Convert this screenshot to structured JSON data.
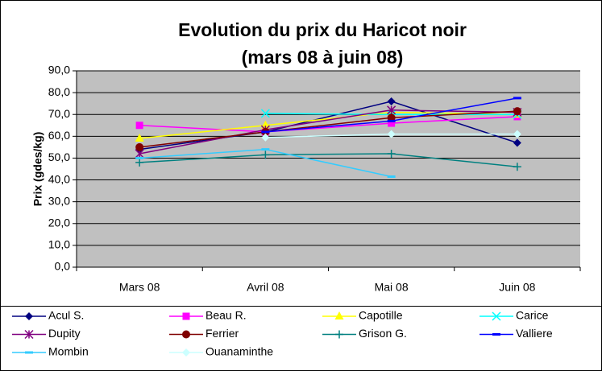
{
  "chart_data": {
    "type": "line",
    "title": [
      "Evolution du prix du Haricot noir",
      "(mars 08 à juin 08)"
    ],
    "y_label": "Prix (gdes/kg)",
    "categories": [
      "Mars 08",
      "Avril 08",
      "Mai 08",
      "Juin 08"
    ],
    "ylim": [
      0,
      90
    ],
    "yticks": [
      {
        "value": 0,
        "label": "0,0"
      },
      {
        "value": 10,
        "label": "10,0"
      },
      {
        "value": 20,
        "label": "20,0"
      },
      {
        "value": 30,
        "label": "30,0"
      },
      {
        "value": 40,
        "label": "40,0"
      },
      {
        "value": 50,
        "label": "50,0"
      },
      {
        "value": 60,
        "label": "60,0"
      },
      {
        "value": 70,
        "label": "70,0"
      },
      {
        "value": 80,
        "label": "80,0"
      },
      {
        "value": 90,
        "label": "90,0"
      }
    ],
    "grid": true,
    "legend": "bottom",
    "series": [
      {
        "name": "Acul S.",
        "color": "#000080",
        "marker": "diamond",
        "values": [
          54,
          62,
          76,
          57
        ]
      },
      {
        "name": "Beau R.",
        "color": "#FF00FF",
        "marker": "square",
        "values": [
          65,
          62,
          66,
          69
        ]
      },
      {
        "name": "Capotille",
        "color": "#FFFF00",
        "marker": "triangle",
        "values": [
          59,
          65,
          71,
          70
        ]
      },
      {
        "name": "Carice",
        "color": "#00FFFF",
        "marker": "x",
        "values": [
          null,
          70.5,
          70,
          70
        ]
      },
      {
        "name": "Dupity",
        "color": "#800080",
        "marker": "star",
        "values": [
          52,
          63,
          72,
          71
        ]
      },
      {
        "name": "Ferrier",
        "color": "#800000",
        "marker": "circle",
        "values": [
          55,
          62,
          68.5,
          71.5
        ]
      },
      {
        "name": "Grison G.",
        "color": "#008080",
        "marker": "plus",
        "values": [
          48,
          51.5,
          52,
          46
        ]
      },
      {
        "name": "Valliere",
        "color": "#0000FF",
        "marker": "dash",
        "values": [
          null,
          62,
          67,
          77.5
        ]
      },
      {
        "name": "Mombin",
        "color": "#33CCFF",
        "marker": "dash",
        "values": [
          50,
          54,
          41.5,
          null
        ]
      },
      {
        "name": "Ouanaminthe",
        "color": "#CCFFFF",
        "marker": "diamond",
        "values": [
          null,
          59.5,
          61,
          61
        ]
      }
    ]
  }
}
